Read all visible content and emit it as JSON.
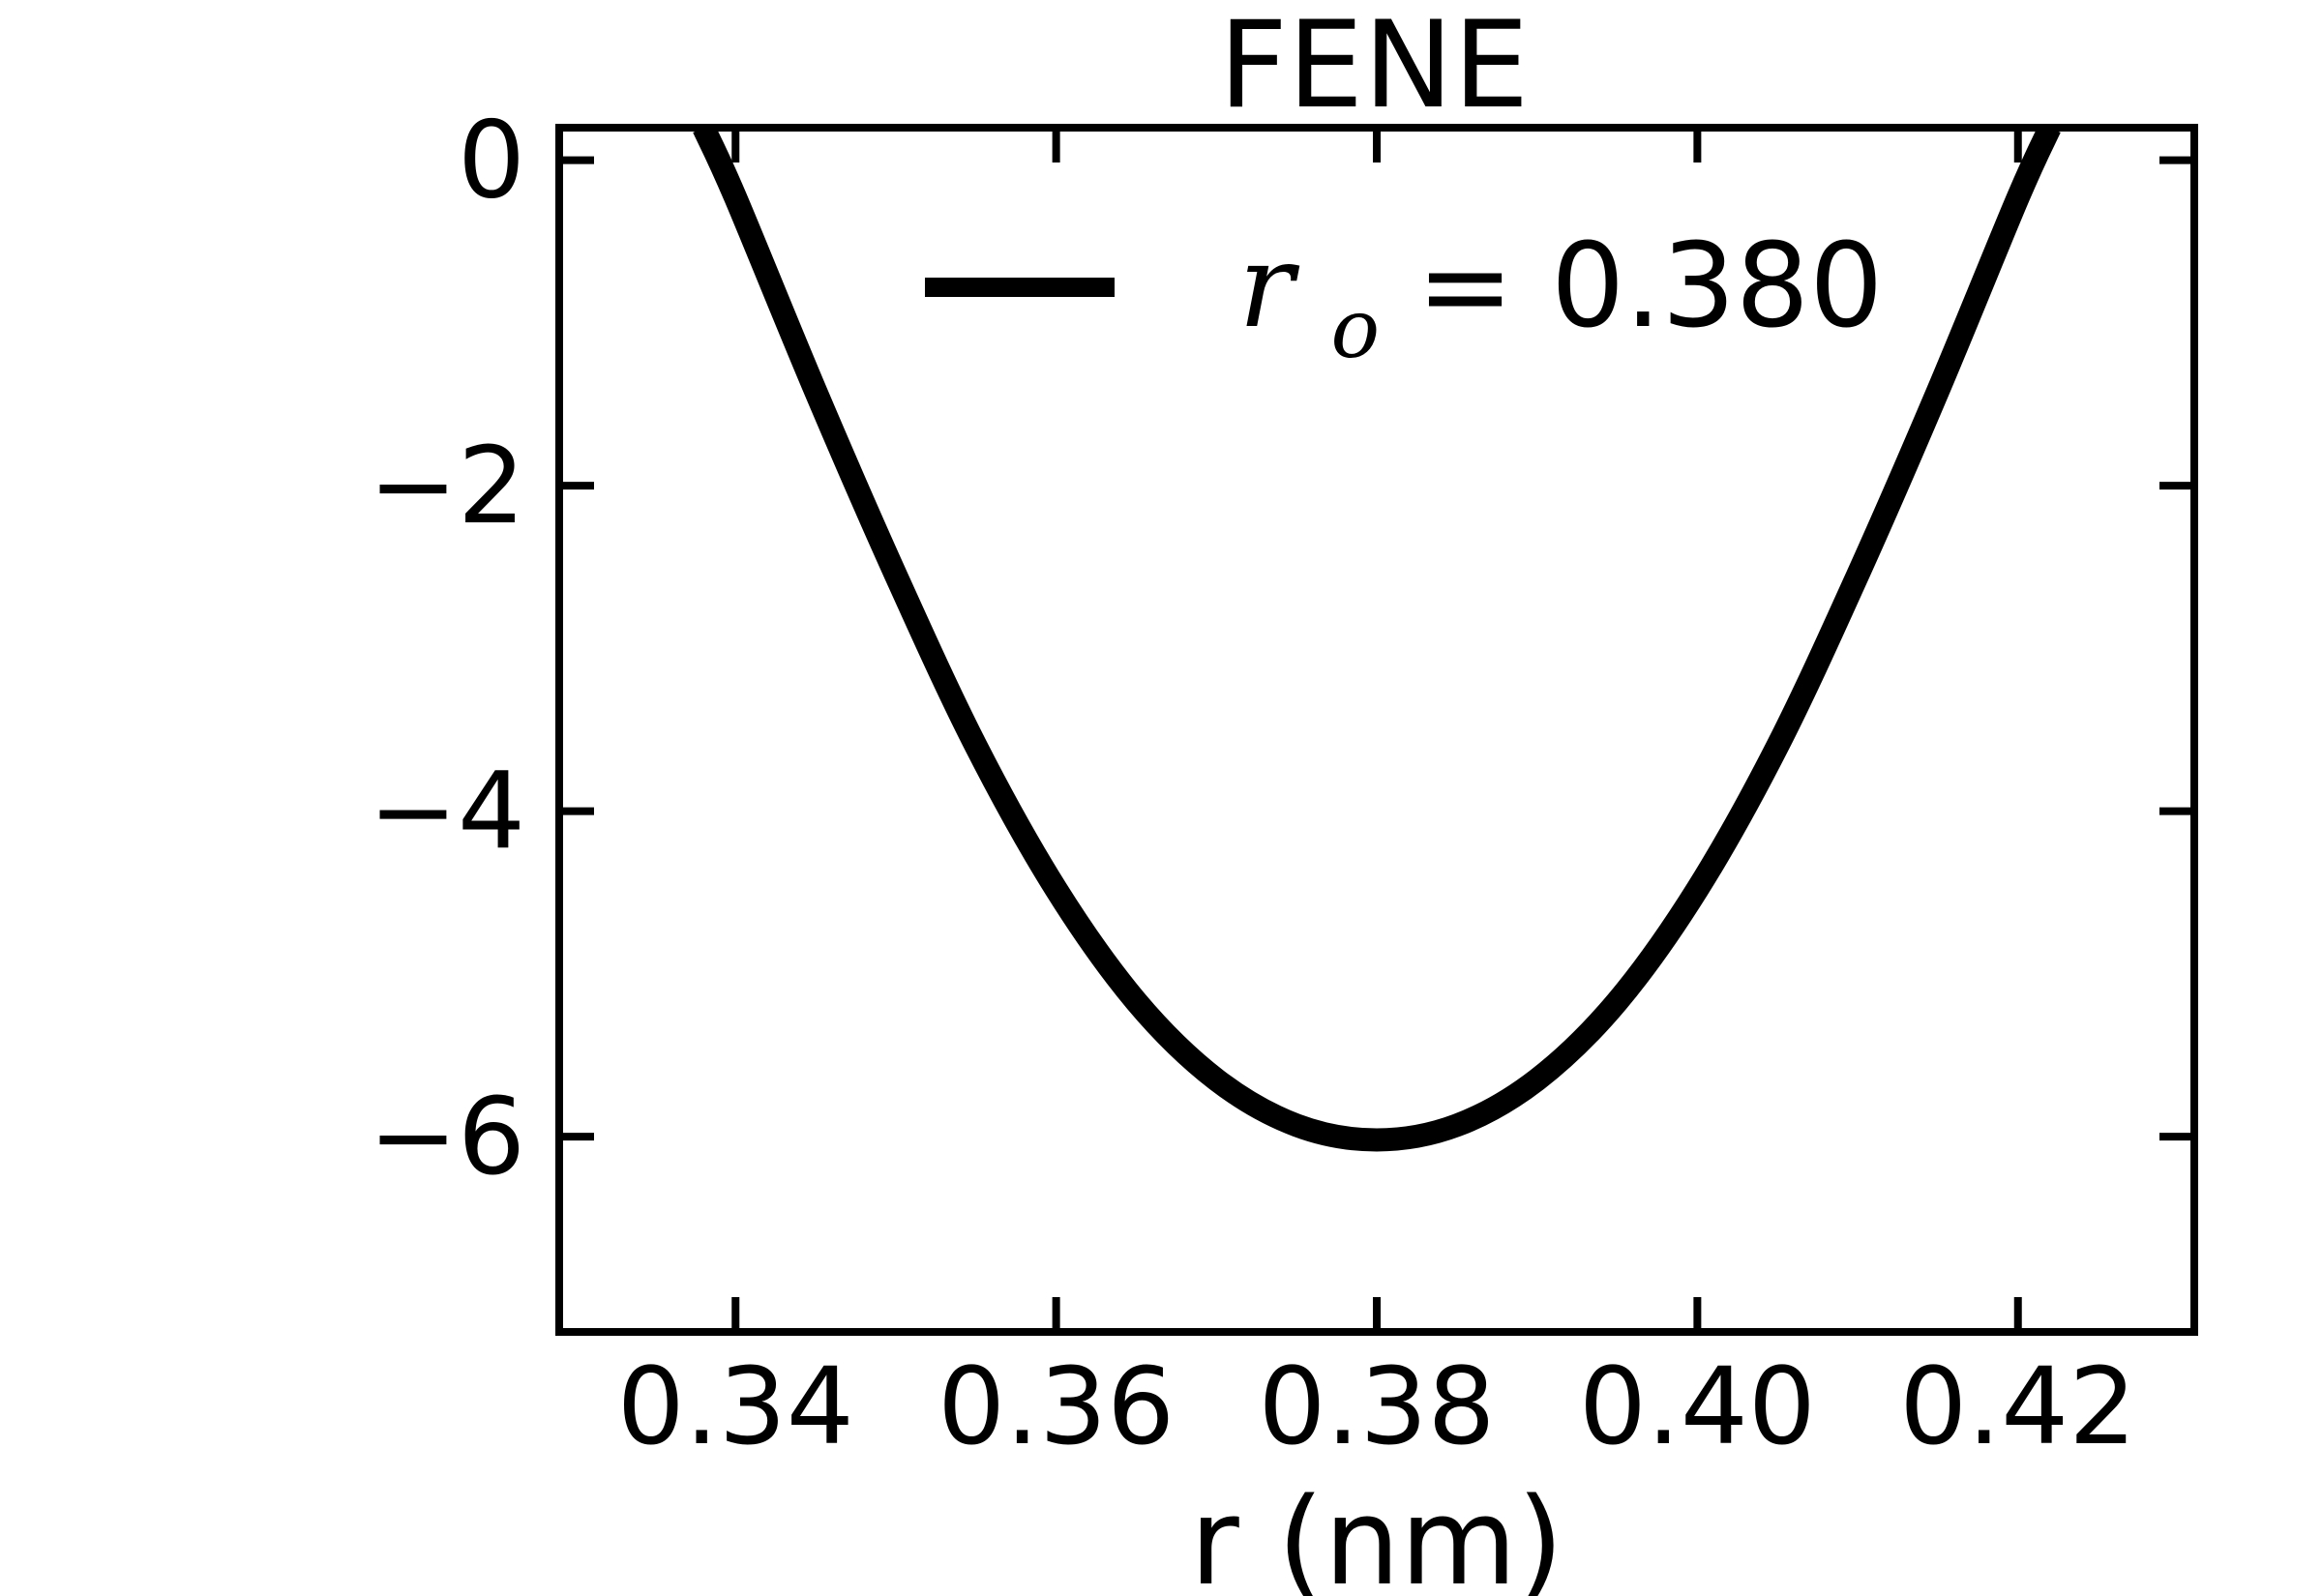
{
  "chart_data": {
    "type": "line",
    "title": "FENE",
    "xlabel": "r (nm)",
    "ylabel": "",
    "xlim": [
      0.329,
      0.431
    ],
    "ylim": [
      -7.2,
      0.2
    ],
    "xticks": [
      0.34,
      0.36,
      0.38,
      0.4,
      0.42
    ],
    "xtick_labels": [
      "0.34",
      "0.36",
      "0.38",
      "0.40",
      "0.42"
    ],
    "yticks": [
      0,
      -2,
      -4,
      -6
    ],
    "ytick_labels": [
      "0",
      "−2",
      "−4",
      "−6"
    ],
    "grid": false,
    "legend": {
      "placement": "top-center",
      "symbol": "r",
      "subscript": "o",
      "text": " = 0.380"
    },
    "series": [
      {
        "name": "r_o = 0.380",
        "color": "#000000",
        "x": [
          0.338,
          0.34,
          0.345,
          0.35,
          0.355,
          0.36,
          0.365,
          0.37,
          0.375,
          0.38,
          0.385,
          0.39,
          0.395,
          0.4,
          0.405,
          0.41,
          0.415,
          0.42,
          0.422
        ],
        "y": [
          0.2,
          -0.23,
          -1.42,
          -2.55,
          -3.6,
          -4.48,
          -5.17,
          -5.65,
          -5.93,
          -6.02,
          -5.93,
          -5.65,
          -5.17,
          -4.48,
          -3.6,
          -2.55,
          -1.42,
          -0.23,
          0.2
        ]
      }
    ]
  }
}
